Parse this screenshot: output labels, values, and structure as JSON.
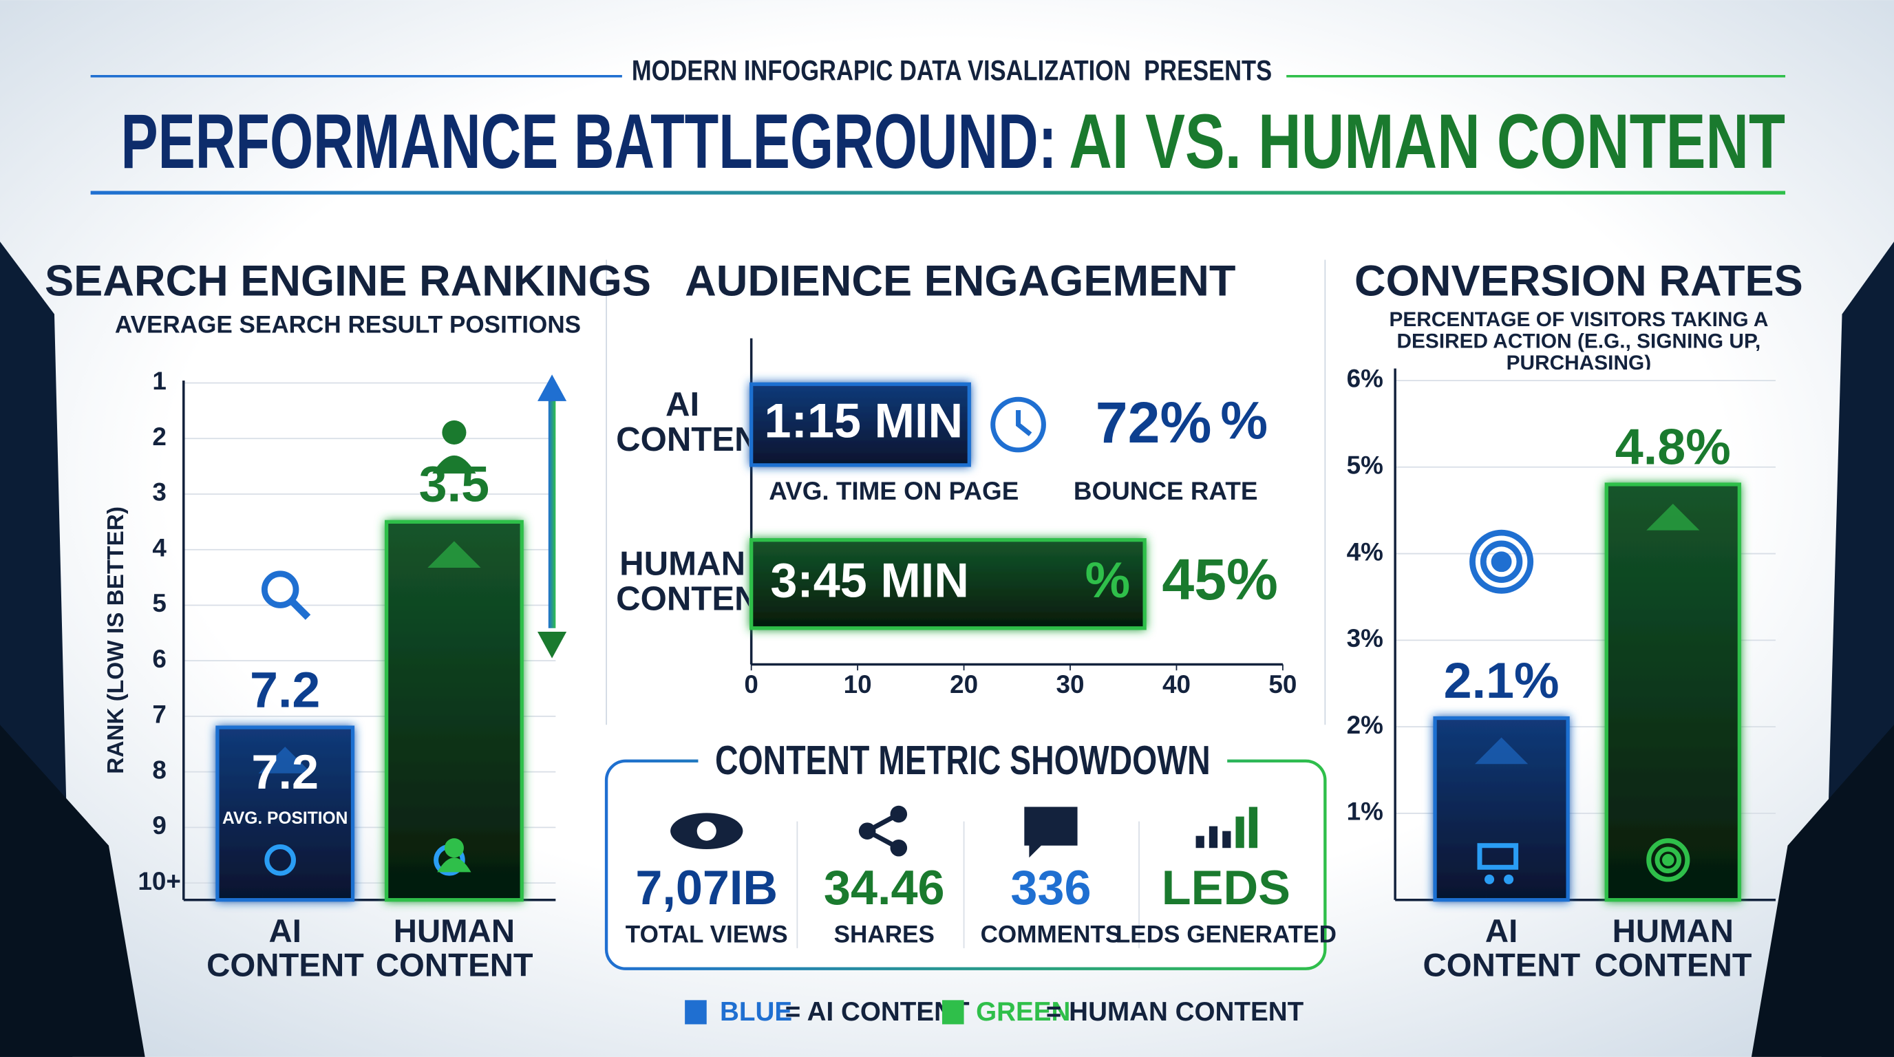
{
  "header": {
    "kicker": "MODERN INFOGRAPIC DATA VISALIZATION  PRESENTS",
    "title_main": "PERFORMANCE BATTLEGROUND:",
    "title_accent": "AI VS. HUMAN CONTENT"
  },
  "chart_data": [
    {
      "type": "bar",
      "title": "SEARCH ENGINE RANKINGS",
      "subtitle": "AVERAGE SEARCH RESULT POSITIONS",
      "y_label": "RANK (LOW IS BETTER)",
      "categories": [
        "AI CONTENT",
        "HUMAN CONTENT"
      ],
      "values": [
        7.2,
        3.5
      ],
      "colors": [
        "#1f6fd1",
        "#2fbf4a"
      ],
      "ylim": [
        1,
        10
      ],
      "y_inverted": true,
      "yticks": [
        1,
        2,
        3,
        4,
        5,
        6,
        7,
        8,
        9,
        {
          "value": 10,
          "label": "10+"
        }
      ],
      "grid": true,
      "annotations": [
        "AVG. POSITION"
      ]
    },
    {
      "type": "bar",
      "horizontal": true,
      "title": "AUDIENCE ENGAGEMENT",
      "categories": [
        "AI CONTENT",
        "HUMAN CONTENT"
      ],
      "values": [
        20.5,
        37
      ],
      "colors": [
        "#1f6fd1",
        "#2fbf4a"
      ],
      "xlim": [
        0,
        50
      ],
      "xticks": [
        0,
        10,
        20,
        30,
        40,
        50
      ],
      "time_labels": [
        "1:15 MIN",
        "3:45 MIN"
      ],
      "time_caption": "AVG. TIME ON PAGE",
      "bounce_labels": [
        "72%",
        "45%"
      ],
      "bounce_caption": "BOUNCE RATE",
      "bounce_icon": "%"
    },
    {
      "type": "bar",
      "title": "CONVERSION RATES",
      "subtitle": "PERCENTAGE OF VISITORS TAKING A DESIRED ACTION (E.G., SIGNING UP, PURCHASING)",
      "categories": [
        "AI CONTENT",
        "HUMAN CONTENT"
      ],
      "values": [
        2.1,
        4.8
      ],
      "value_labels": [
        "2.1%",
        "4.8%"
      ],
      "colors": [
        "#1f6fd1",
        "#2fbf4a"
      ],
      "ylim": [
        0,
        6
      ],
      "yticks": [
        {
          "value": 1,
          "label": "1%"
        },
        {
          "value": 2,
          "label": "2%"
        },
        {
          "value": 3,
          "label": "3%"
        },
        {
          "value": 4,
          "label": "4%"
        },
        {
          "value": 5,
          "label": "5%"
        },
        {
          "value": 6,
          "label": "6%"
        }
      ],
      "grid": true
    }
  ],
  "showdown": {
    "title": "CONTENT METRIC SHOWDOWN",
    "items": [
      {
        "value": "7,07IB",
        "label": "TOTAL VIEWS"
      },
      {
        "value": "34.46",
        "label": "SHARES"
      },
      {
        "value": "336",
        "label": "COMMENTS"
      },
      {
        "value": "LEDS",
        "label": "LEDS GENERATED"
      }
    ]
  },
  "legend": {
    "items": [
      {
        "key": "BLUE",
        "text": "= AI CONTENT",
        "color": "#1f6fd1"
      },
      {
        "key": "GREEN",
        "text": "= HUMAN CONTENT",
        "color": "#2fbf4a"
      }
    ]
  }
}
